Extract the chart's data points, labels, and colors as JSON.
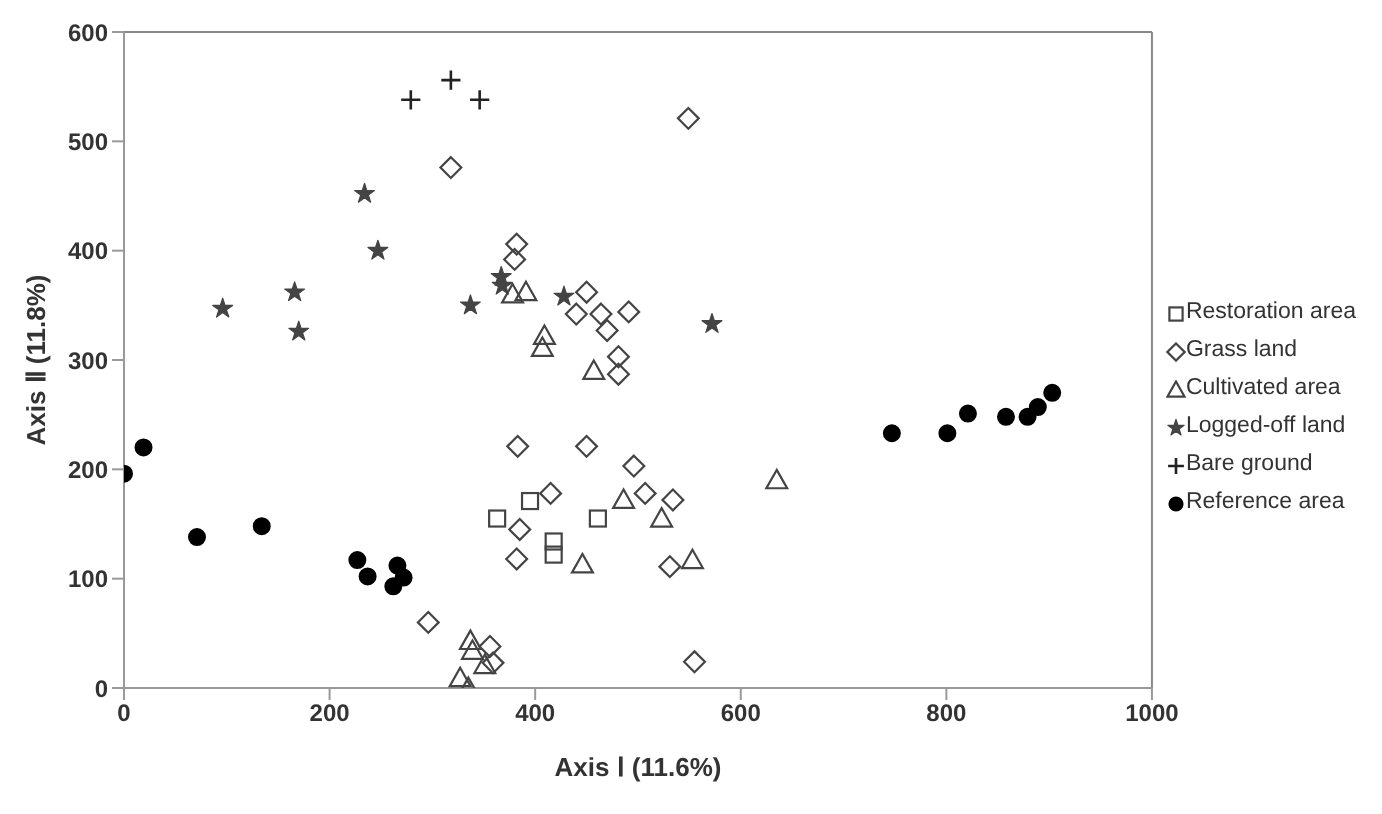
{
  "chart_data": {
    "type": "scatter",
    "xlabel": "Axis Ⅰ (11.6%)",
    "ylabel": "Axis Ⅱ (11.8%)",
    "xlim": [
      0,
      1000
    ],
    "xticks": [
      0,
      200,
      400,
      600,
      800,
      1000
    ],
    "ylim": [
      0,
      600
    ],
    "yticks": [
      0,
      100,
      200,
      300,
      400,
      500,
      600
    ],
    "grid": false,
    "legend": "right",
    "series": [
      {
        "name": "Restoration area",
        "color": "#444444",
        "marker": "square",
        "x": [
          363,
          395,
          418,
          418,
          461
        ],
        "values": [
          155,
          171,
          134,
          122,
          155
        ]
      },
      {
        "name": "Grass land",
        "color": "#444444",
        "marker": "diamond",
        "x": [
          318,
          382,
          380,
          450,
          440,
          464,
          470,
          491,
          481,
          481,
          383,
          450,
          496,
          415,
          385,
          382,
          296,
          356,
          359,
          549,
          507,
          534,
          531,
          555
        ],
        "values": [
          476,
          406,
          392,
          362,
          342,
          342,
          327,
          344,
          303,
          287,
          221,
          221,
          203,
          178,
          145,
          118,
          60,
          38,
          23,
          521,
          178,
          172,
          111,
          24
        ]
      },
      {
        "name": "Cultivated area",
        "color": "#444444",
        "marker": "triangle",
        "x": [
          378,
          391,
          409,
          407,
          457,
          486,
          446,
          337,
          339,
          351,
          327,
          335,
          523,
          553,
          635
        ],
        "values": [
          360,
          362,
          322,
          311,
          290,
          172,
          113,
          43,
          34,
          21,
          9,
          0,
          155,
          117,
          190
        ]
      },
      {
        "name": "Logged-off land",
        "color": "#444444",
        "marker": "star",
        "x": [
          234,
          247,
          166,
          170,
          96,
          337,
          367,
          368,
          428,
          572
        ],
        "values": [
          452,
          400,
          362,
          326,
          347,
          350,
          376,
          368,
          358,
          333
        ]
      },
      {
        "name": "Bare ground",
        "color": "#222222",
        "marker": "cross",
        "x": [
          279,
          318,
          346
        ],
        "values": [
          538,
          556,
          538
        ]
      },
      {
        "name": "Reference area",
        "color": "#000000",
        "marker": "circle",
        "x": [
          0,
          19,
          71,
          134,
          227,
          237,
          266,
          262,
          272,
          747,
          801,
          821,
          858,
          879,
          889,
          903
        ],
        "values": [
          196,
          220,
          138,
          148,
          117,
          102,
          112,
          93,
          101,
          233,
          233,
          251,
          248,
          248,
          257,
          270
        ]
      }
    ]
  }
}
